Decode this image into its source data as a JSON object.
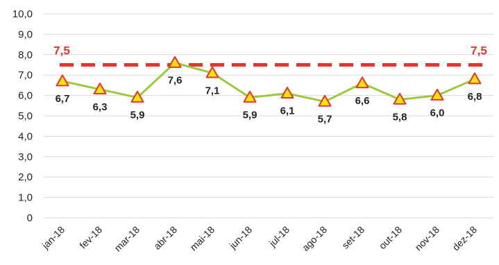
{
  "chart_data": {
    "type": "line",
    "title": "",
    "xlabel": "",
    "ylabel": "",
    "ylim": [
      0,
      10
    ],
    "y_ticks": [
      "0",
      "1,0",
      "2,0",
      "3,0",
      "4,0",
      "5,0",
      "6,0",
      "7,0",
      "8,0",
      "9,0",
      "10,0"
    ],
    "grid": true,
    "legend": "none",
    "categories": [
      "jan-18",
      "fev-18",
      "mar-18",
      "abr-18",
      "mai-18",
      "jun-18",
      "jul-18",
      "ago-18",
      "set-18",
      "out-18",
      "nov-18",
      "dez-18"
    ],
    "series": [
      {
        "values": [
          6.7,
          6.3,
          5.9,
          7.6,
          7.1,
          5.9,
          6.1,
          5.7,
          6.6,
          5.8,
          6.0,
          6.8
        ],
        "labels": [
          "6,7",
          "6,3",
          "5,9",
          "7,6",
          "7,1",
          "5,9",
          "6,1",
          "5,7",
          "6,6",
          "5,8",
          "6,0",
          "6,8"
        ],
        "line_color": "#9bc93c",
        "marker": "triangle",
        "marker_fill": "#ffe400",
        "marker_stroke": "#e8322c"
      }
    ],
    "target": {
      "value": 7.5,
      "label": "7,5",
      "style": "dashed",
      "color": "#e8322c"
    }
  }
}
